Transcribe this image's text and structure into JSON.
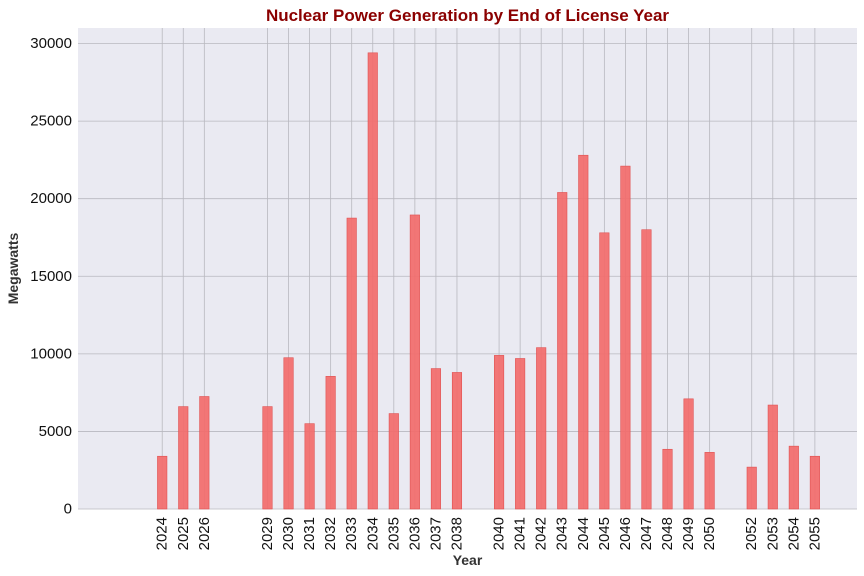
{
  "chart_data": {
    "type": "bar",
    "title": "Nuclear Power Generation by End of License Year",
    "xlabel": "Year",
    "ylabel": "Megawatts",
    "x": [
      2024,
      2025,
      2026,
      2029,
      2030,
      2031,
      2032,
      2033,
      2034,
      2035,
      2036,
      2037,
      2038,
      2040,
      2041,
      2042,
      2043,
      2044,
      2045,
      2046,
      2047,
      2048,
      2049,
      2050,
      2052,
      2053,
      2054,
      2055
    ],
    "values": [
      3400,
      6600,
      7250,
      6600,
      9750,
      5500,
      8550,
      18750,
      29400,
      6150,
      18950,
      9050,
      8800,
      9900,
      9700,
      10400,
      20400,
      22800,
      17800,
      22100,
      18000,
      3850,
      7100,
      3650,
      2700,
      6700,
      4050,
      3400
    ],
    "xlim": [
      2020,
      2057
    ],
    "ylim": [
      0,
      31000
    ],
    "yticks": [
      0,
      5000,
      10000,
      15000,
      20000,
      25000,
      30000
    ],
    "grid": true,
    "colors": {
      "bar": "#f26b6b",
      "bar_edge": "#e05050",
      "plot_bg": "#eaeaf2",
      "grid": "#b8b8bf",
      "title": "#8b0000"
    }
  }
}
